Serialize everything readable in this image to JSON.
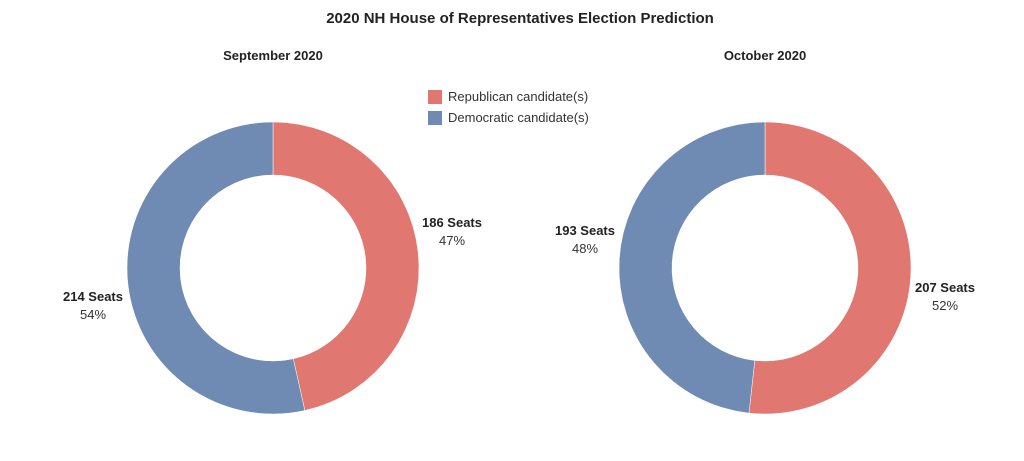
{
  "title": "2020 NH House of Representatives Election Prediction",
  "legend": [
    {
      "label": "Republican candidate(s)",
      "color": "#e07770"
    },
    {
      "label": "Democratic candidate(s)",
      "color": "#6f8bb3"
    }
  ],
  "colors": {
    "republican": "#e07770",
    "democratic": "#6f8bb3"
  },
  "chart_data": [
    {
      "type": "pie",
      "subtitle": "September 2020",
      "slices": [
        {
          "party": "Republican candidate(s)",
          "seats": 186,
          "seats_label": "186 Seats",
          "percent_label": "47%"
        },
        {
          "party": "Democratic candidate(s)",
          "seats": 214,
          "seats_label": "214 Seats",
          "percent_label": "54%"
        }
      ]
    },
    {
      "type": "pie",
      "subtitle": "October 2020",
      "slices": [
        {
          "party": "Republican candidate(s)",
          "seats": 207,
          "seats_label": "207 Seats",
          "percent_label": "52%"
        },
        {
          "party": "Democratic candidate(s)",
          "seats": 193,
          "seats_label": "193 Seats",
          "percent_label": "48%"
        }
      ]
    }
  ]
}
